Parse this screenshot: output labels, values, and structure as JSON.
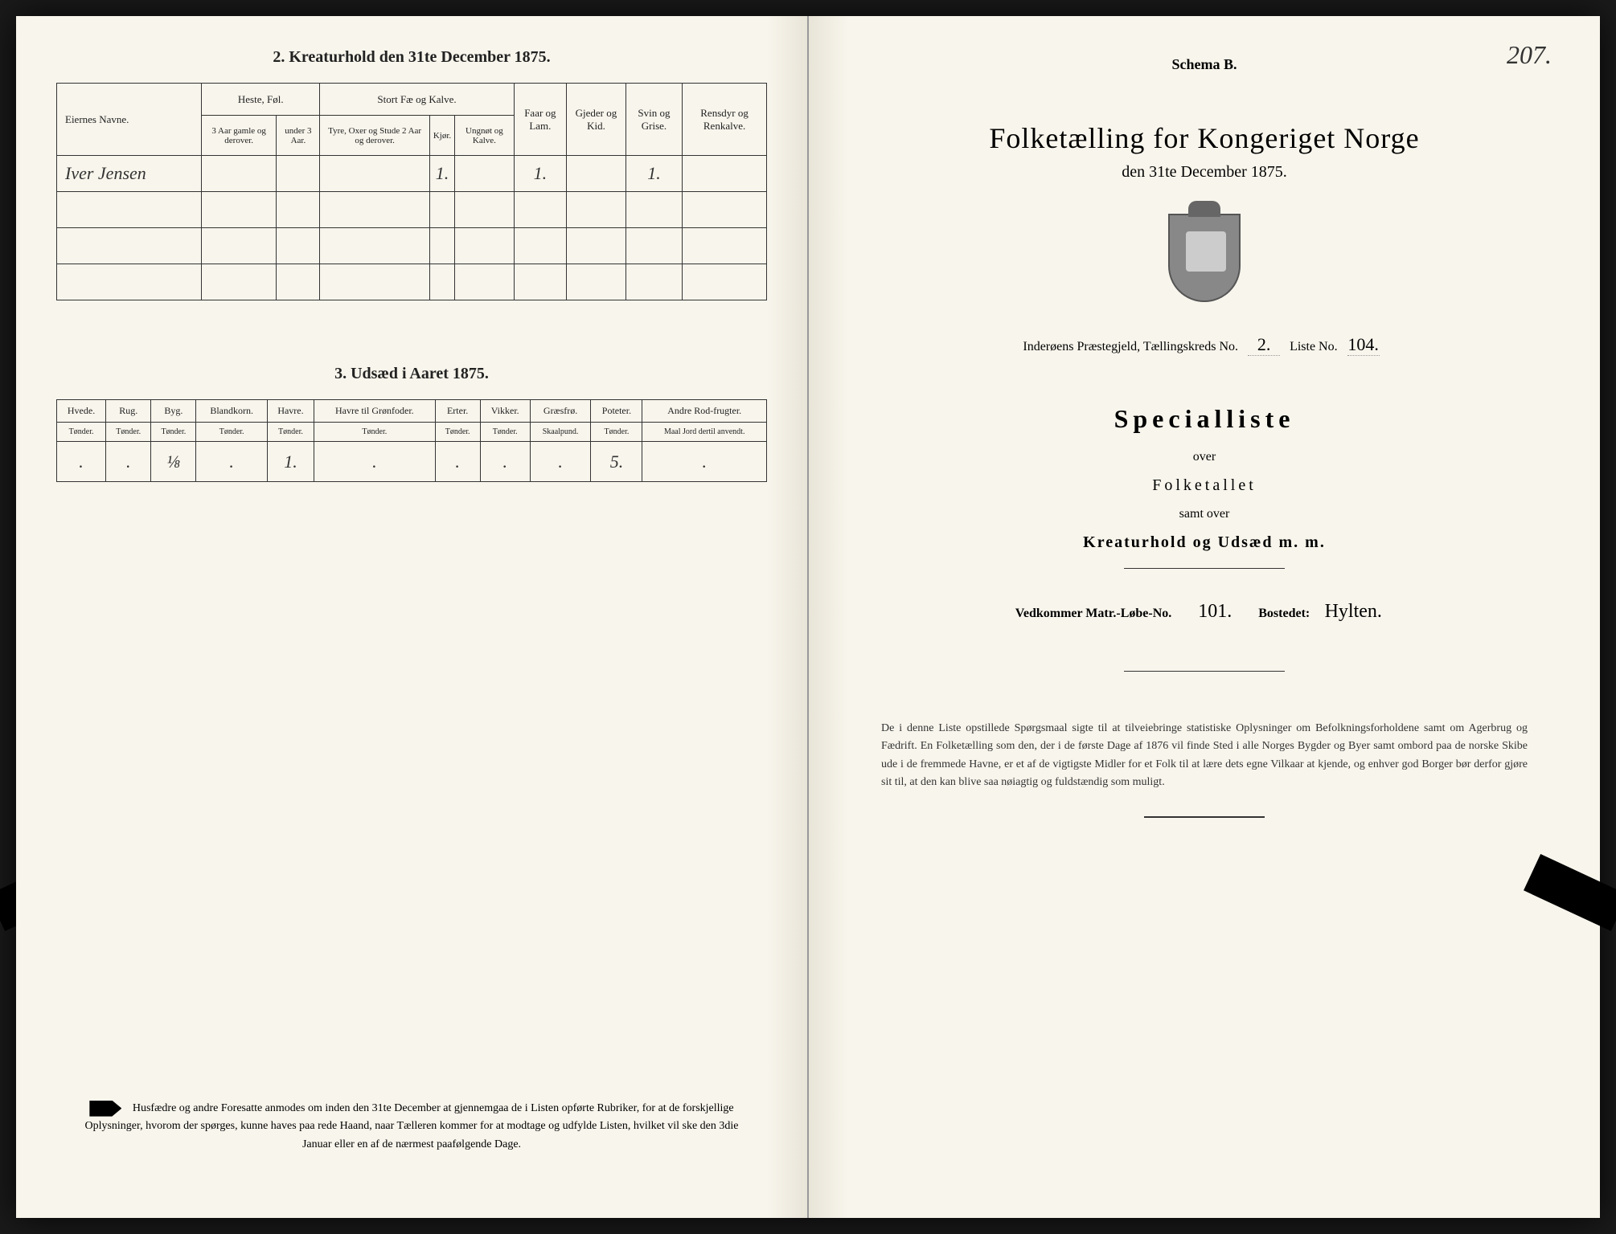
{
  "page_number": "207.",
  "left_page": {
    "section2_title": "2.  Kreaturhold den 31te December 1875.",
    "table1": {
      "header_r1": [
        "Eiernes Navne.",
        "Heste, Føl.",
        "Stort Fæ og Kalve.",
        "Faar og Lam.",
        "Gjeder og Kid.",
        "Svin og Grise.",
        "Rensdyr og Renkalve."
      ],
      "header_r2": [
        "3 Aar gamle og derover.",
        "under 3 Aar.",
        "Tyre, Oxer og Stude 2 Aar og derover.",
        "Kjør.",
        "Ungnøt og Kalve."
      ],
      "rows": [
        {
          "name": "Iver Jensen",
          "cells": [
            "",
            "",
            "",
            "1.",
            "",
            "1.",
            "",
            "1.",
            ""
          ]
        },
        {
          "name": "",
          "cells": [
            "",
            "",
            "",
            "",
            "",
            "",
            "",
            "",
            ""
          ]
        },
        {
          "name": "",
          "cells": [
            "",
            "",
            "",
            "",
            "",
            "",
            "",
            "",
            ""
          ]
        },
        {
          "name": "",
          "cells": [
            "",
            "",
            "",
            "",
            "",
            "",
            "",
            "",
            ""
          ]
        }
      ]
    },
    "section3_title": "3.  Udsæd i Aaret 1875.",
    "table2": {
      "header_r1": [
        "Hvede.",
        "Rug.",
        "Byg.",
        "Blandkorn.",
        "Havre.",
        "Havre til Grønfoder.",
        "Erter.",
        "Vikker.",
        "Græsfrø.",
        "Poteter.",
        "Andre Rod-frugter."
      ],
      "header_r2": [
        "Tønder.",
        "Tønder.",
        "Tønder.",
        "Tønder.",
        "Tønder.",
        "Tønder.",
        "Tønder.",
        "Tønder.",
        "Skaalpund.",
        "Tønder.",
        "Maal Jord dertil anvendt."
      ],
      "row": [
        ".",
        ".",
        "⅛",
        ".",
        "1.",
        ".",
        ".",
        ".",
        ".",
        "5.",
        "."
      ]
    },
    "footer": "Husfædre og andre Foresatte anmodes om inden den 31te December at gjennemgaa de i Listen opførte Rubriker, for at de forskjellige Oplysninger, hvorom der spørges, kunne haves paa rede Haand, naar Tælleren kommer for at modtage og udfylde Listen, hvilket vil ske den 3die Januar eller en af de nærmest paafølgende Dage."
  },
  "right_page": {
    "schema": "Schema B.",
    "main_title": "Folketælling for Kongeriget Norge",
    "subtitle": "den 31te December 1875.",
    "info_prefix": "Inderøens Præstegjeld,  Tællingskreds No.",
    "kreds_no": "2.",
    "liste_label": "Liste No.",
    "liste_no": "104.",
    "special_title": "Specialliste",
    "over": "over",
    "folketallet": "Folketallet",
    "samt": "samt over",
    "kreatur": "Kreaturhold og Udsæd m. m.",
    "matr_label": "Vedkommer Matr.-Løbe-No.",
    "matr_no": "101.",
    "bosted_label": "Bostedet:",
    "bosted": "Hylten.",
    "footer": "De i denne Liste opstillede Spørgsmaal sigte til at tilveiebringe statistiske Oplysninger om Befolkningsforholdene samt om Agerbrug og Fædrift. En Folketælling som den, der i de første Dage af 1876 vil finde Sted i alle Norges Bygder og Byer samt ombord paa de norske Skibe ude i de fremmede Havne, er et af de vigtigste Midler for et Folk til at lære dets egne Vilkaar at kjende, og enhver god Borger bør derfor gjøre sit til, at den kan blive saa nøiagtig og fuldstændig som muligt."
  },
  "colors": {
    "page_bg": "#f8f5ec",
    "text": "#222222",
    "border": "#333333"
  }
}
